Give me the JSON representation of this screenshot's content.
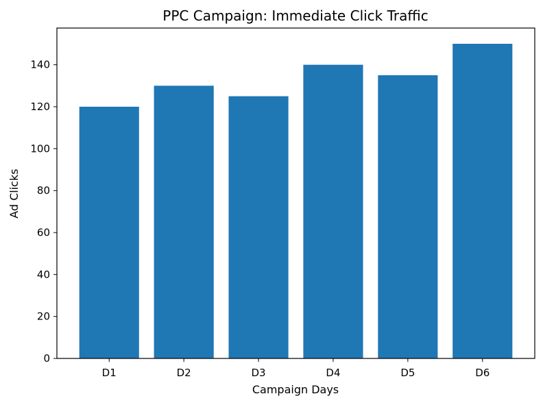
{
  "chart_data": {
    "type": "bar",
    "title": "PPC Campaign: Immediate Click Traffic",
    "xlabel": "Campaign Days",
    "ylabel": "Ad Clicks",
    "categories": [
      "D1",
      "D2",
      "D3",
      "D4",
      "D5",
      "D6"
    ],
    "values": [
      120,
      130,
      125,
      140,
      135,
      150
    ],
    "ylim": [
      0,
      157.5
    ],
    "yticks": [
      0,
      20,
      40,
      60,
      80,
      100,
      120,
      140
    ],
    "bar_color": "#1f77b4",
    "grid": false,
    "legend": "none"
  }
}
